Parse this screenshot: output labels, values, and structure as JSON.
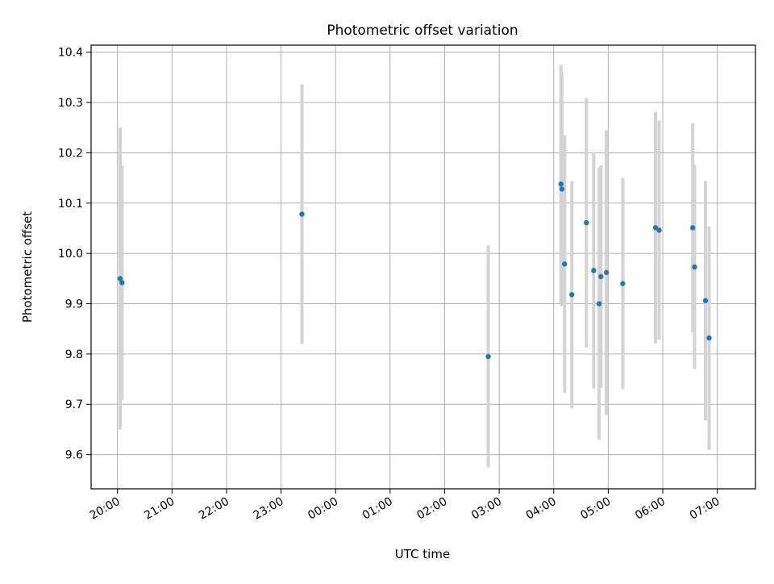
{
  "chart_data": {
    "type": "scatter",
    "title": "Photometric offset variation",
    "xlabel": "UTC time",
    "ylabel": "Photometric offset",
    "x_axis_kind": "time",
    "xlim": [
      "19:31",
      "07:42"
    ],
    "ylim": [
      9.532,
      10.414
    ],
    "x_ticks": [
      "20:00",
      "21:00",
      "22:00",
      "23:00",
      "00:00",
      "01:00",
      "02:00",
      "03:00",
      "04:00",
      "05:00",
      "06:00",
      "07:00"
    ],
    "y_ticks": [
      9.6,
      9.7,
      9.8,
      9.9,
      10.0,
      10.1,
      10.2,
      10.3,
      10.4
    ],
    "grid": true,
    "colors": {
      "points": "#1f77b4",
      "errorbars": "#d3d3d3",
      "grid": "#b0b0b0"
    },
    "series": [
      {
        "points": [
          {
            "x": "20:03",
            "y": 9.95,
            "err": 0.3
          },
          {
            "x": "20:05",
            "y": 9.942,
            "err": 0.233
          },
          {
            "x": "23:23",
            "y": 10.078,
            "err": 0.258
          },
          {
            "x": "02:48",
            "y": 9.795,
            "err": 0.221
          },
          {
            "x": "04:08",
            "y": 10.138,
            "err": 0.237
          },
          {
            "x": "04:09",
            "y": 10.128,
            "err": 0.233
          },
          {
            "x": "04:12",
            "y": 9.979,
            "err": 0.256
          },
          {
            "x": "04:20",
            "y": 9.918,
            "err": 0.226
          },
          {
            "x": "04:36",
            "y": 10.061,
            "err": 0.248
          },
          {
            "x": "04:44",
            "y": 9.966,
            "err": 0.235
          },
          {
            "x": "04:50",
            "y": 9.9,
            "err": 0.271
          },
          {
            "x": "04:52",
            "y": 9.954,
            "err": 0.221
          },
          {
            "x": "04:58",
            "y": 9.962,
            "err": 0.283
          },
          {
            "x": "05:16",
            "y": 9.94,
            "err": 0.21
          },
          {
            "x": "05:52",
            "y": 10.051,
            "err": 0.23
          },
          {
            "x": "05:56",
            "y": 10.046,
            "err": 0.218
          },
          {
            "x": "06:33",
            "y": 10.051,
            "err": 0.208
          },
          {
            "x": "06:35",
            "y": 9.973,
            "err": 0.203
          },
          {
            "x": "06:47",
            "y": 9.906,
            "err": 0.238
          },
          {
            "x": "06:51",
            "y": 9.832,
            "err": 0.222
          }
        ]
      }
    ]
  }
}
